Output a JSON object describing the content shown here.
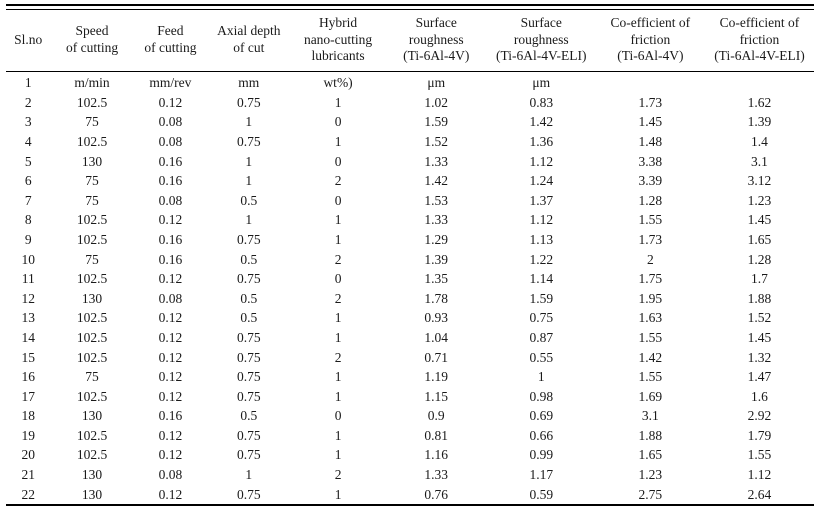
{
  "accent_colors": {
    "text": "#1a1a1a",
    "rule": "#000000",
    "background": "#ffffff"
  },
  "table": {
    "columns": [
      {
        "label": "Sl.no"
      },
      {
        "label": "Speed\nof cutting"
      },
      {
        "label": "Feed\nof cutting"
      },
      {
        "label": "Axial depth\nof cut"
      },
      {
        "label": "Hybrid\nnano-cutting\nlubricants"
      },
      {
        "label": "Surface\nroughness\n(Ti-6Al-4V)"
      },
      {
        "label": "Surface\nroughness\n(Ti-6Al-4V-ELI)"
      },
      {
        "label": "Co-efficient of\nfriction\n(Ti-6Al-4V)"
      },
      {
        "label": "Co-efficient of\nfriction\n(Ti-6Al-4V-ELI)"
      }
    ],
    "units_row_note": "row 1 holds measurement units",
    "rows": [
      [
        "1",
        "m/min",
        "mm/rev",
        "mm",
        "wt%)",
        "μm",
        "μm",
        "",
        ""
      ],
      [
        "2",
        "102.5",
        "0.12",
        "0.75",
        "1",
        "1.02",
        "0.83",
        "1.73",
        "1.62"
      ],
      [
        "3",
        "75",
        "0.08",
        "1",
        "0",
        "1.59",
        "1.42",
        "1.45",
        "1.39"
      ],
      [
        "4",
        "102.5",
        "0.08",
        "0.75",
        "1",
        "1.52",
        "1.36",
        "1.48",
        "1.4"
      ],
      [
        "5",
        "130",
        "0.16",
        "1",
        "0",
        "1.33",
        "1.12",
        "3.38",
        "3.1"
      ],
      [
        "6",
        "75",
        "0.16",
        "1",
        "2",
        "1.42",
        "1.24",
        "3.39",
        "3.12"
      ],
      [
        "7",
        "75",
        "0.08",
        "0.5",
        "0",
        "1.53",
        "1.37",
        "1.28",
        "1.23"
      ],
      [
        "8",
        "102.5",
        "0.12",
        "1",
        "1",
        "1.33",
        "1.12",
        "1.55",
        "1.45"
      ],
      [
        "9",
        "102.5",
        "0.16",
        "0.75",
        "1",
        "1.29",
        "1.13",
        "1.73",
        "1.65"
      ],
      [
        "10",
        "75",
        "0.16",
        "0.5",
        "2",
        "1.39",
        "1.22",
        "2",
        "1.28"
      ],
      [
        "11",
        "102.5",
        "0.12",
        "0.75",
        "0",
        "1.35",
        "1.14",
        "1.75",
        "1.7"
      ],
      [
        "12",
        "130",
        "0.08",
        "0.5",
        "2",
        "1.78",
        "1.59",
        "1.95",
        "1.88"
      ],
      [
        "13",
        "102.5",
        "0.12",
        "0.5",
        "1",
        "0.93",
        "0.75",
        "1.63",
        "1.52"
      ],
      [
        "14",
        "102.5",
        "0.12",
        "0.75",
        "1",
        "1.04",
        "0.87",
        "1.55",
        "1.45"
      ],
      [
        "15",
        "102.5",
        "0.12",
        "0.75",
        "2",
        "0.71",
        "0.55",
        "1.42",
        "1.32"
      ],
      [
        "16",
        "75",
        "0.12",
        "0.75",
        "1",
        "1.19",
        "1",
        "1.55",
        "1.47"
      ],
      [
        "17",
        "102.5",
        "0.12",
        "0.75",
        "1",
        "1.15",
        "0.98",
        "1.69",
        "1.6"
      ],
      [
        "18",
        "130",
        "0.16",
        "0.5",
        "0",
        "0.9",
        "0.69",
        "3.1",
        "2.92"
      ],
      [
        "19",
        "102.5",
        "0.12",
        "0.75",
        "1",
        "0.81",
        "0.66",
        "1.88",
        "1.79"
      ],
      [
        "20",
        "102.5",
        "0.12",
        "0.75",
        "1",
        "1.16",
        "0.99",
        "1.65",
        "1.55"
      ],
      [
        "21",
        "130",
        "0.08",
        "1",
        "2",
        "1.33",
        "1.17",
        "1.23",
        "1.12"
      ],
      [
        "22",
        "130",
        "0.12",
        "0.75",
        "1",
        "0.76",
        "0.59",
        "2.75",
        "2.64"
      ]
    ]
  }
}
